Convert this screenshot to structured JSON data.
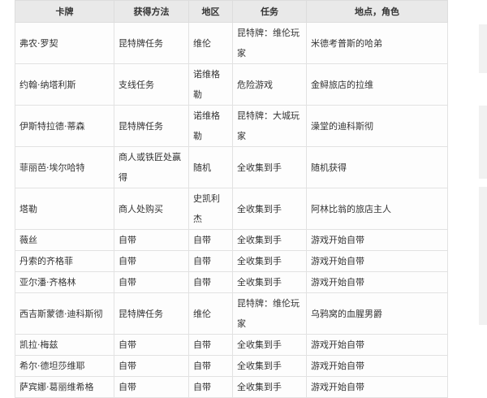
{
  "table": {
    "headers": [
      "卡牌",
      "获得方法",
      "地区",
      "任务",
      "地点，角色"
    ],
    "rows": [
      [
        "弗农·罗契",
        "昆特牌任务",
        "维伦",
        "昆特牌：维伦玩家",
        "米德考普斯的哈弟"
      ],
      [
        "约翰·纳塔利斯",
        "支线任务",
        "诺维格勒",
        "危险游戏",
        "金鲟旅店的拉维"
      ],
      [
        "伊斯特拉德·蒂森",
        "昆特牌任务",
        "诺维格勒",
        "昆特牌：大城玩家",
        "澡堂的迪科斯彻"
      ],
      [
        "菲丽芭·埃尔哈特",
        "商人或铁匠处赢得",
        "随机",
        "全收集到手",
        "随机获得"
      ],
      [
        "塔勒",
        "商人处购买",
        "史凯利杰",
        "全收集到手",
        "阿林比翁的旅店主人"
      ],
      [
        "薇丝",
        "自带",
        "自带",
        "全收集到手",
        "游戏开始自带"
      ],
      [
        "丹索的齐格菲",
        "自带",
        "自带",
        "全收集到手",
        "游戏开始自带"
      ],
      [
        "亚尔潘·齐格林",
        "自带",
        "自带",
        "全收集到手",
        "游戏开始自带"
      ],
      [
        "西吉斯蒙德·迪科斯彻",
        "昆特牌任务",
        "维伦",
        "昆特牌：维伦玩家",
        "乌鸦窝的血腥男爵"
      ],
      [
        "凯拉·梅兹",
        "自带",
        "自带",
        "全收集到手",
        "游戏开始自带"
      ],
      [
        "希尔·德坦莎维耶",
        "自带",
        "自带",
        "全收集到手",
        "游戏开始自带"
      ],
      [
        "萨宾娜·葛丽维希格",
        "自带",
        "自带",
        "全收集到手",
        "游戏开始自带"
      ]
    ]
  }
}
